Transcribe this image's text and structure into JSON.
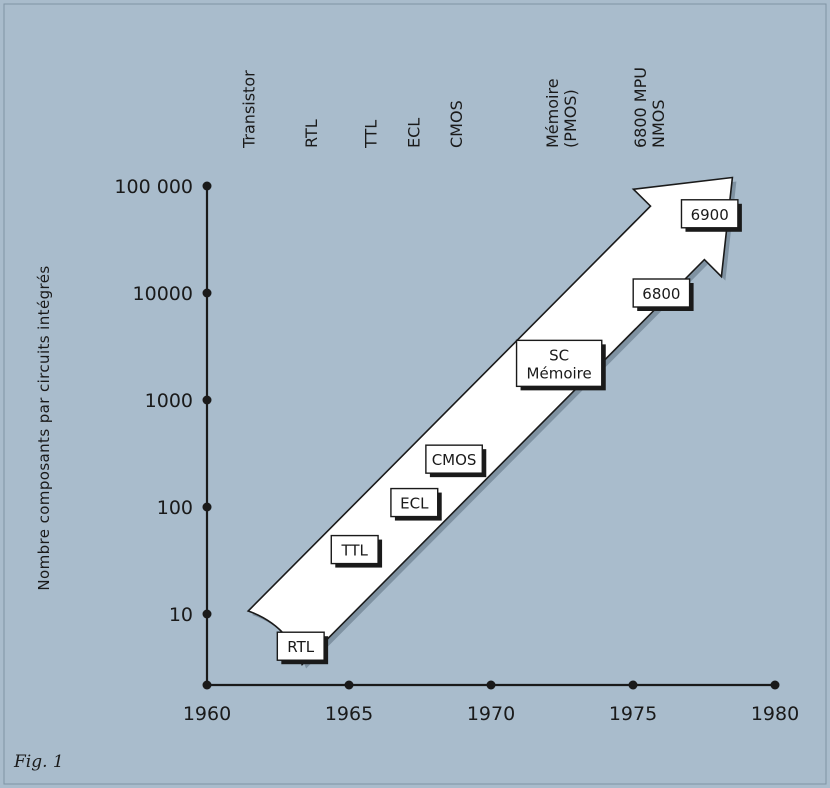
{
  "caption": "Fig. 1",
  "colors": {
    "background": "#a9bccc",
    "ink": "#1a1a1a",
    "arrow_fill": "#ffffff"
  },
  "chart_data": {
    "type": "line",
    "title": "",
    "xlabel": "",
    "ylabel": "Nombre composants par circuits intégrés",
    "y_scale": "log",
    "xlim": [
      1960,
      1980
    ],
    "ylim": [
      2,
      100000
    ],
    "x_ticks": [
      1960,
      1965,
      1970,
      1975,
      1980
    ],
    "x_tick_labels": [
      "1960",
      "1965",
      "1970",
      "1975",
      "1980"
    ],
    "y_ticks": [
      10,
      100,
      1000,
      10000,
      100000
    ],
    "y_tick_labels": [
      "10",
      "100",
      "1000",
      "10000",
      "100 000"
    ],
    "grid": false,
    "timeline_labels": [
      {
        "lines": [
          "Transistor"
        ],
        "year": 1961.5
      },
      {
        "lines": [
          "RTL"
        ],
        "year": 1963.7
      },
      {
        "lines": [
          "TTL"
        ],
        "year": 1965.8
      },
      {
        "lines": [
          "ECL"
        ],
        "year": 1967.3
      },
      {
        "lines": [
          "CMOS"
        ],
        "year": 1968.8
      },
      {
        "lines": [
          "Mémoire",
          "(PMOS)"
        ],
        "year": 1972.5
      },
      {
        "lines": [
          "6800 MPU",
          "NMOS"
        ],
        "year": 1975.6
      }
    ],
    "annotations": [
      {
        "lines": [
          "RTL"
        ],
        "year": 1963.3,
        "value": 5
      },
      {
        "lines": [
          "TTL"
        ],
        "year": 1965.2,
        "value": 40
      },
      {
        "lines": [
          "ECL"
        ],
        "year": 1967.3,
        "value": 110
      },
      {
        "lines": [
          "CMOS"
        ],
        "year": 1968.7,
        "value": 280
      },
      {
        "lines": [
          "SC",
          "Mémoire"
        ],
        "year": 1972.4,
        "value": 2200
      },
      {
        "lines": [
          "6800"
        ],
        "year": 1976.0,
        "value": 10000
      },
      {
        "lines": [
          "6900"
        ],
        "year": 1977.7,
        "value": 55000
      }
    ],
    "trend_arrow": {
      "from": {
        "year": 1962.4,
        "value": 6
      },
      "to": {
        "year": 1978.5,
        "value": 120000
      }
    }
  }
}
